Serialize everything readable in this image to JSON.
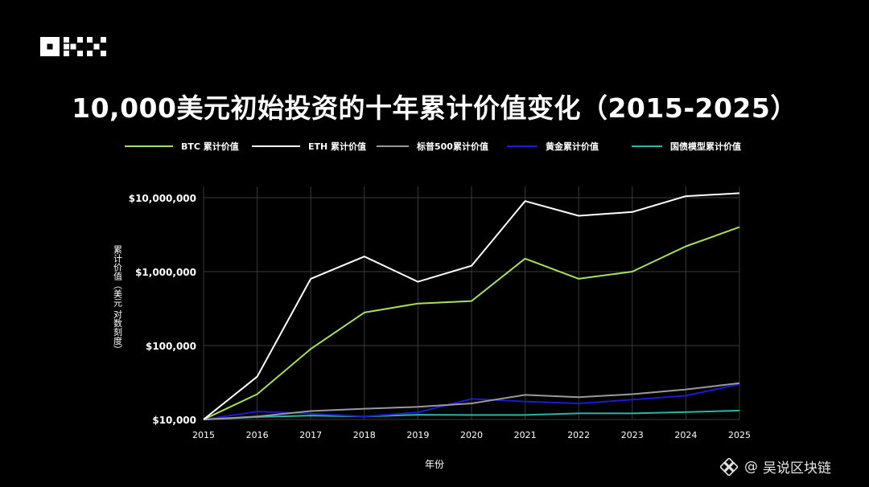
{
  "brand": {
    "logo_text": "OKX"
  },
  "colors": {
    "background": "#000000",
    "grid": "#3a3a3a",
    "axis_text": "#ffffff",
    "btc": "#a8e05f",
    "eth": "#ffffff",
    "sp500": "#9a9a9a",
    "gold": "#1a1ad0",
    "bonds": "#2ab5a5"
  },
  "watermark": {
    "at": "@",
    "name": "吴说区块链"
  },
  "chart_data": {
    "type": "line",
    "title": "10,000美元初始投资的十年累计价值变化（2015-2025）",
    "xlabel": "年份",
    "ylabel": "累计价值（美元 对数刻度）",
    "yscale": "log",
    "ylim": [
      10000,
      12000000
    ],
    "grid": true,
    "legend_position": "top",
    "x": [
      2015,
      2016,
      2017,
      2018,
      2019,
      2020,
      2021,
      2022,
      2023,
      2024,
      2025
    ],
    "y_ticks": [
      10000,
      100000,
      1000000,
      10000000
    ],
    "y_tick_labels": [
      "$10,000",
      "$100,000",
      "$1,000,000",
      "$10,000,000"
    ],
    "x_tick_labels": [
      "2015",
      "2016",
      "2017",
      "2018",
      "2019",
      "2020",
      "2021",
      "2022",
      "2023",
      "2024",
      "2025"
    ],
    "series": [
      {
        "key": "btc",
        "name": "BTC 累计价值",
        "color": "#a8e05f",
        "values": [
          10000,
          22000,
          90000,
          280000,
          370000,
          400000,
          1500000,
          800000,
          1000000,
          2200000,
          4000000
        ]
      },
      {
        "key": "eth",
        "name": "ETH 累计价值",
        "color": "#ffffff",
        "values": [
          10000,
          38000,
          800000,
          1600000,
          730000,
          1200000,
          9000000,
          5700000,
          6400000,
          10500000,
          11500000
        ]
      },
      {
        "key": "sp500",
        "name": "标普500累计价值",
        "color": "#9a9a9a",
        "values": [
          10000,
          11000,
          13000,
          14000,
          14800,
          16500,
          21500,
          20000,
          22000,
          25500,
          31000
        ]
      },
      {
        "key": "gold",
        "name": "黄金累计价值",
        "color": "#1a1ad0",
        "values": [
          10000,
          12800,
          12000,
          11000,
          12500,
          19000,
          17500,
          16500,
          18500,
          21000,
          30000
        ]
      },
      {
        "key": "bonds",
        "name": "国债模型累计价值",
        "color": "#2ab5a5",
        "values": [
          10000,
          10800,
          11300,
          11000,
          11600,
          11500,
          11500,
          12100,
          12100,
          12600,
          13200
        ]
      }
    ]
  }
}
